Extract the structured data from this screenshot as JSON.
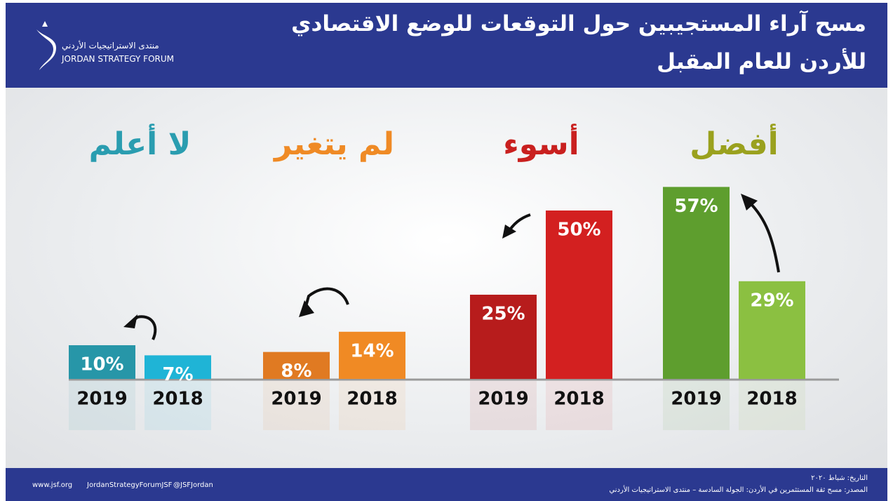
{
  "header": {
    "title_line1": "مسح آراء المستجيبين حول التوقعات للوضع الاقتصادي",
    "title_line2": "للأردن للعام المقبل",
    "logo_arabic": "منتدى الاستراتيجيات الأردني",
    "logo_english": "JORDAN STRATEGY FORUM"
  },
  "chart_data": {
    "type": "bar",
    "categories": [
      "لا أعلم",
      "لم يتغير",
      "أسوء",
      "أفضل"
    ],
    "category_colors": [
      "#2a9db0",
      "#ef8a25",
      "#c9201f",
      "#9aa11e"
    ],
    "series": [
      {
        "name": "2019",
        "colors": [
          "#2796a8",
          "#e07a22",
          "#b71c1c",
          "#5e9e2e"
        ],
        "values": [
          10,
          8,
          25,
          57
        ],
        "value_labels": [
          "10%",
          "8%",
          "25%",
          "57%"
        ]
      },
      {
        "name": "2018",
        "colors": [
          "#1fb4d6",
          "#f08a24",
          "#d32020",
          "#8bc041"
        ],
        "values": [
          7,
          14,
          50,
          29
        ],
        "value_labels": [
          "7%",
          "14%",
          "50%",
          "29%"
        ]
      }
    ]
  },
  "footer": {
    "website": "www.jsf.org",
    "facebook": "JordanStrategyForumJSF",
    "twitter": "@JSFJordan",
    "date": "التاريخ: شباط ٢٠٢٠",
    "source": "المصدر: مسح ثقة المستثمرين في الأردن: الجولة السادسة – منتدى الاستراتيجيات الأردني"
  }
}
